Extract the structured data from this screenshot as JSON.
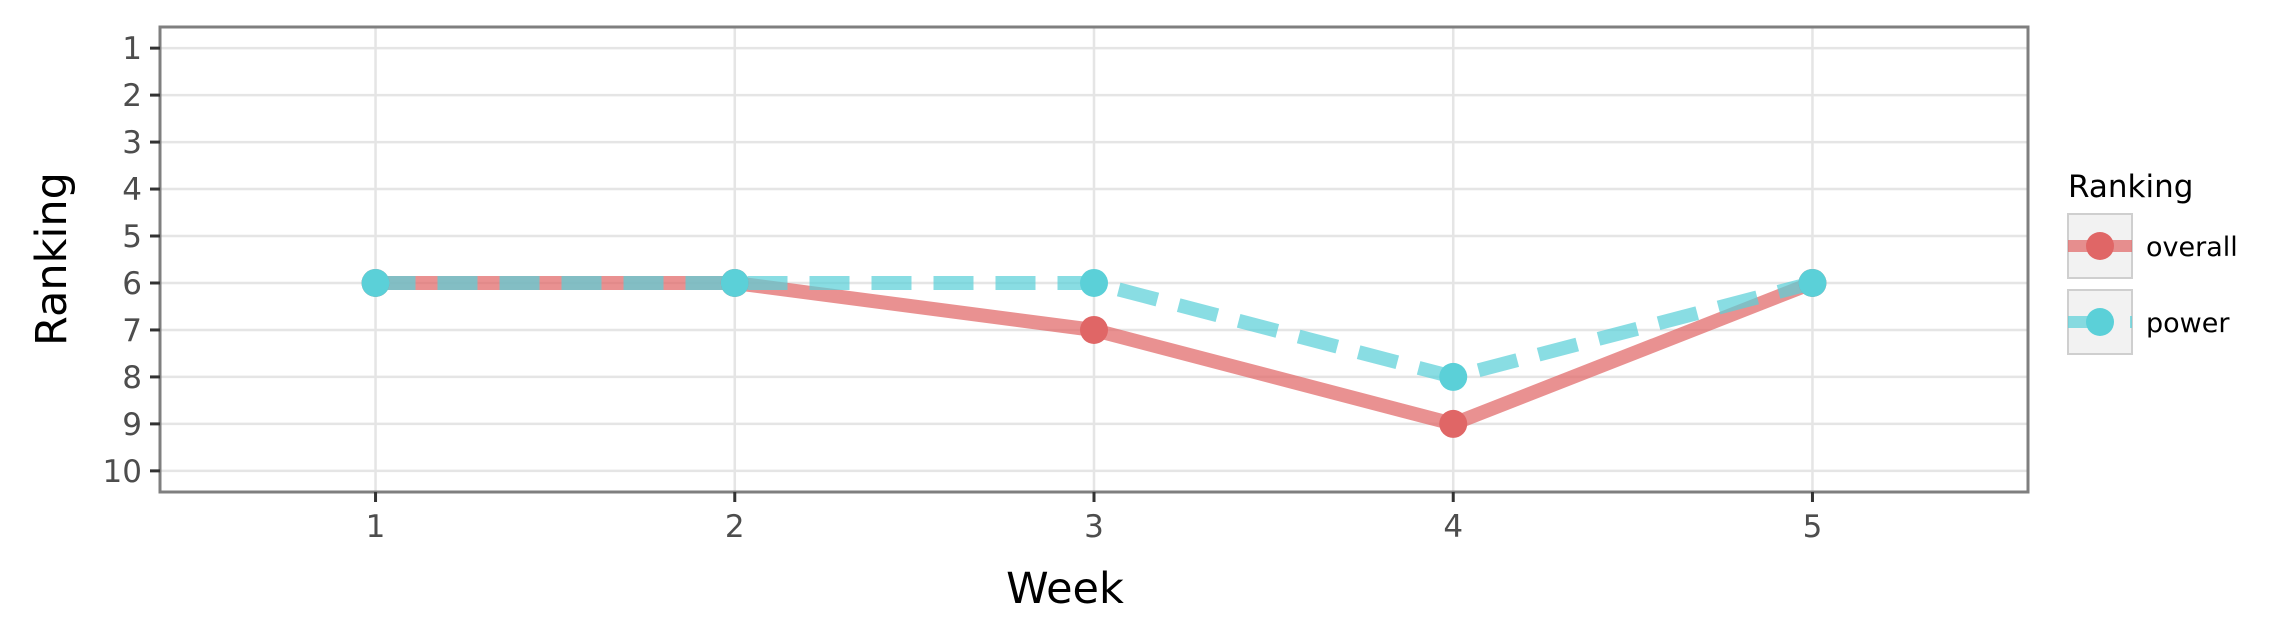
{
  "chart_data": {
    "type": "line",
    "title": "",
    "xlabel": "Week",
    "ylabel": "Ranking",
    "x": [
      1,
      2,
      3,
      4,
      5
    ],
    "xlim": [
      0.4,
      5.6
    ],
    "ylim": [
      10.45,
      0.55
    ],
    "y_reversed": true,
    "x_ticks": [
      1,
      2,
      3,
      4,
      5
    ],
    "y_ticks": [
      1,
      2,
      3,
      4,
      5,
      6,
      7,
      8,
      9,
      10
    ],
    "grid": true,
    "legend": {
      "title": "Ranking",
      "position": "right"
    },
    "series": [
      {
        "name": "overall",
        "values": [
          6,
          6,
          7,
          9,
          6
        ],
        "color": "#e06666",
        "line_style": "solid"
      },
      {
        "name": "power",
        "values": [
          6,
          6,
          6,
          8,
          6
        ],
        "color": "#5bd0d8",
        "line_style": "dashed"
      }
    ]
  }
}
